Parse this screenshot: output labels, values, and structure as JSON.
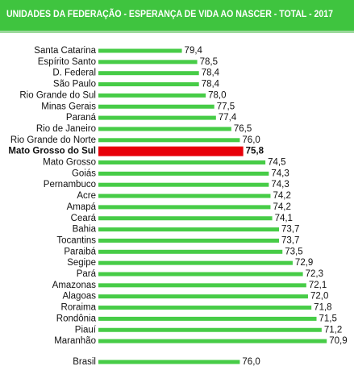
{
  "chart_data": {
    "type": "bar",
    "orientation": "horizontal",
    "title": "UNIDADES DA FEDERAÇÃO - ESPERANÇA DE VIDA AO NASCER - TOTAL - 2017",
    "categories": [
      "Santa Catarina",
      "Espírito Santo",
      "D. Federal",
      "São Paulo",
      "Rio Grande do Sul",
      "Minas Gerais",
      "Paraná",
      "Rio de Janeiro",
      "Rio Grande do Norte",
      "Mato Grosso do Sul",
      "Mato Grosso",
      "Goiás",
      "Pernambuco",
      "Acre",
      "Amapá",
      "Ceará",
      "Bahia",
      "Tocantins",
      "Paraibá",
      "Segipe",
      "Pará",
      "Amazonas",
      "Alagoas",
      "Roraima",
      "Rondônia",
      "Piauí",
      "Maranhão",
      "Brasil"
    ],
    "values": [
      79.4,
      78.5,
      78.4,
      78.4,
      78.0,
      77.5,
      77.4,
      76.5,
      76.0,
      75.8,
      74.5,
      74.3,
      74.3,
      74.2,
      74.2,
      74.1,
      73.7,
      73.7,
      73.5,
      72.9,
      72.3,
      72.1,
      72.0,
      71.8,
      71.5,
      71.2,
      70.9,
      76.0
    ],
    "value_labels": [
      "79,4",
      "78,5",
      "78,4",
      "78,4",
      "78,0",
      "77,5",
      "77,4",
      "76,5",
      "76,0",
      "75,8",
      "74,5",
      "74,3",
      "74,3",
      "74,2",
      "74,2",
      "74,1",
      "73,7",
      "73,7",
      "73,5",
      "72,9",
      "72,3",
      "72,1",
      "72,0",
      "71,8",
      "71,5",
      "71,2",
      "70,9",
      "76,0"
    ],
    "color": "#47cc47",
    "colors": [
      "#47cc47",
      "#47cc47",
      "#47cc47",
      "#47cc47",
      "#47cc47",
      "#47cc47",
      "#47cc47",
      "#47cc47",
      "#47cc47",
      "#e8000a",
      "#47cc47",
      "#47cc47",
      "#47cc47",
      "#47cc47",
      "#47cc47",
      "#47cc47",
      "#47cc47",
      "#47cc47",
      "#47cc47",
      "#47cc47",
      "#47cc47",
      "#47cc47",
      "#47cc47",
      "#47cc47",
      "#47cc47",
      "#47cc47",
      "#47cc47",
      "#47cc47"
    ],
    "xlim": [
      84.3,
      70.2
    ]
  }
}
